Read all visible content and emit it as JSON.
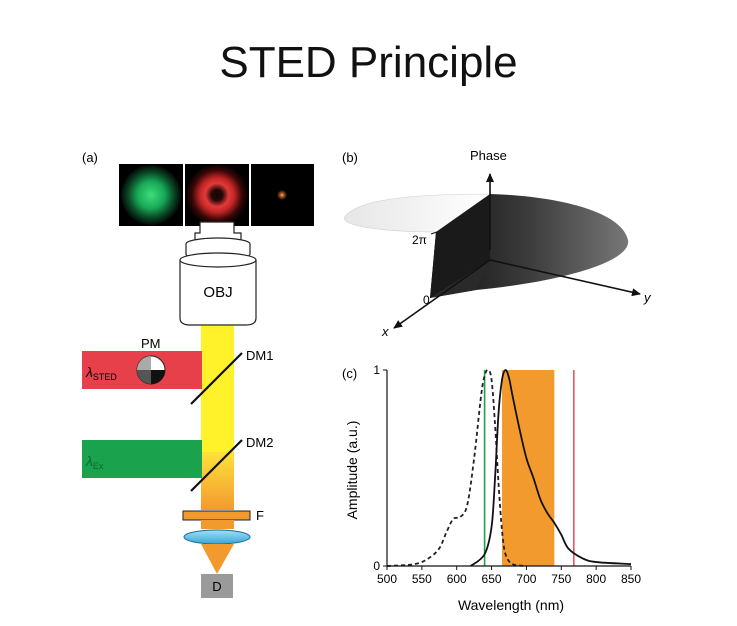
{
  "title": "STED Principle",
  "panel_a": {
    "label": "(a)",
    "objective": "OBJ",
    "phase_mask": "PM",
    "dichroic_1": "DM1",
    "dichroic_2": "DM2",
    "filter": "F",
    "detector": "D",
    "sted_symbol": "λ",
    "sted_sub": "STED",
    "ex_symbol": "λ",
    "ex_sub": "Ex",
    "colors": {
      "sted_beam": "#e8404a",
      "ex_beam": "#1aa24c",
      "yellow_beam": "#fff12a",
      "orange_beam": "#f39a2f"
    }
  },
  "panel_b": {
    "label": "(b)",
    "axis_phase": "Phase",
    "tick_2pi": "2π",
    "tick_0": "0",
    "axis_x": "x",
    "axis_y": "y"
  },
  "panel_c": {
    "label": "(c)",
    "ylabel": "Amplitude (a.u.)",
    "xlabel": "Wavelength (nm)",
    "y_ticks": [
      "0",
      "1"
    ],
    "x_ticks": [
      "500",
      "550",
      "600",
      "650",
      "700",
      "750",
      "800",
      "850"
    ]
  },
  "chart_data": {
    "type": "line",
    "xlabel": "Wavelength (nm)",
    "ylabel": "Amplitude (a.u.)",
    "xlim": [
      500,
      850
    ],
    "ylim": [
      0,
      1
    ],
    "series": [
      {
        "style": "dashed",
        "x": [
          500,
          540,
          560,
          575,
          585,
          595,
          605,
          615,
          625,
          635,
          640,
          645,
          650,
          655,
          660,
          665,
          670,
          680,
          700
        ],
        "y": [
          0.0,
          0.01,
          0.04,
          0.09,
          0.17,
          0.24,
          0.25,
          0.31,
          0.55,
          0.87,
          0.97,
          1.0,
          0.95,
          0.72,
          0.42,
          0.18,
          0.06,
          0.01,
          0.0
        ]
      },
      {
        "style": "solid",
        "x": [
          620,
          640,
          650,
          655,
          660,
          665,
          670,
          675,
          680,
          690,
          700,
          710,
          720,
          730,
          740,
          750,
          760,
          780,
          800,
          850
        ],
        "y": [
          0.0,
          0.06,
          0.2,
          0.45,
          0.78,
          0.95,
          1.0,
          0.96,
          0.87,
          0.7,
          0.55,
          0.45,
          0.34,
          0.27,
          0.22,
          0.16,
          0.09,
          0.04,
          0.02,
          0.01
        ]
      }
    ],
    "excitation_line": {
      "x": 640,
      "color": "#1aa24c"
    },
    "sted_line": {
      "x": 768,
      "color": "#e8404a"
    },
    "detection_band": {
      "x0": 665,
      "x1": 740,
      "color": "#f39a2f"
    }
  }
}
